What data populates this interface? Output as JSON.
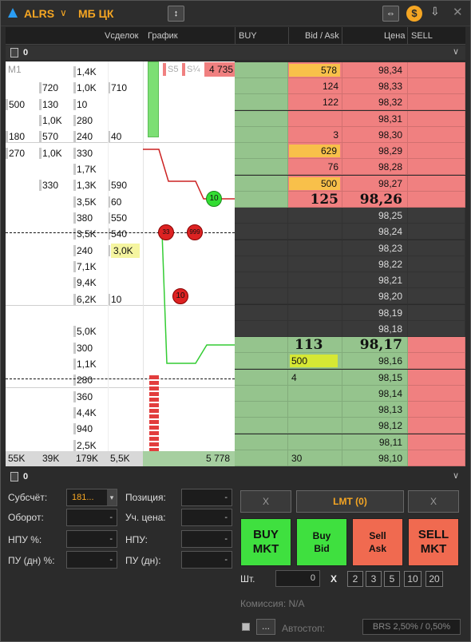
{
  "title": {
    "ticker": "ALRS",
    "board": "МБ ЦК"
  },
  "header": {
    "vsdelok": "Vсделок",
    "grafik": "График",
    "buy": "BUY",
    "bidask": "Bid / Ask",
    "price": "Цена",
    "sell": "SELL"
  },
  "section_top": {
    "count": "0"
  },
  "timeframe": "M1",
  "left_rows": [
    {
      "c1": "",
      "c2": "",
      "c3": "1,4K",
      "c4": ""
    },
    {
      "c1": "",
      "c2": "720",
      "c3": "1,0K",
      "c4": "710"
    },
    {
      "c1": "500",
      "c2": "130",
      "c3": "10",
      "c4": ""
    },
    {
      "c1": "",
      "c2": "1,0K",
      "c3": "280",
      "c4": ""
    },
    {
      "c1": "180",
      "c2": "570",
      "c3": "240",
      "c4": "40"
    },
    {
      "c1": "270",
      "c2": "1,0K",
      "c3": "330",
      "c4": ""
    },
    {
      "c1": "",
      "c2": "",
      "c3": "1,7K",
      "c4": ""
    },
    {
      "c1": "",
      "c2": "330",
      "c3": "1,3K",
      "c4": "590"
    },
    {
      "c1": "",
      "c2": "",
      "c3": "3,5K",
      "c4": "60"
    },
    {
      "c1": "",
      "c2": "",
      "c3": "380",
      "c4": "550"
    },
    {
      "c1": "",
      "c2": "",
      "c3": "3,5K",
      "c4": "540"
    },
    {
      "c1": "",
      "c2": "",
      "c3": "240",
      "c4": "3,0K"
    },
    {
      "c1": "",
      "c2": "",
      "c3": "7,1K",
      "c4": ""
    },
    {
      "c1": "",
      "c2": "",
      "c3": "9,4K",
      "c4": ""
    },
    {
      "c1": "",
      "c2": "",
      "c3": "6,2K",
      "c4": "10"
    },
    {
      "c1": "",
      "c2": "",
      "c3": "",
      "c4": ""
    },
    {
      "c1": "",
      "c2": "",
      "c3": "5,0K",
      "c4": ""
    },
    {
      "c1": "",
      "c2": "",
      "c3": "300",
      "c4": ""
    },
    {
      "c1": "",
      "c2": "",
      "c3": "1,1K",
      "c4": ""
    },
    {
      "c1": "",
      "c2": "",
      "c3": "280",
      "c4": ""
    },
    {
      "c1": "",
      "c2": "",
      "c3": "360",
      "c4": ""
    },
    {
      "c1": "",
      "c2": "",
      "c3": "4,4K",
      "c4": ""
    },
    {
      "c1": "",
      "c2": "",
      "c3": "940",
      "c4": ""
    },
    {
      "c1": "",
      "c2": "",
      "c3": "2,5K",
      "c4": ""
    }
  ],
  "chart_labels": {
    "s5": "S5",
    "s14": "S¼",
    "last": "4 735",
    "marker_green": "10",
    "marker_red_a": "33",
    "marker_red_b": "999",
    "marker_red_c": "10"
  },
  "totals": {
    "c1": "55K",
    "c2": "39K",
    "c3": "179K",
    "c4": "5,5K",
    "chart": "5 778"
  },
  "orderbook": [
    {
      "price": "98,34",
      "ba": "578",
      "side": "ask",
      "hl": true
    },
    {
      "price": "98,33",
      "ba": "124",
      "side": "ask",
      "hl": false
    },
    {
      "price": "98,32",
      "ba": "122",
      "side": "ask",
      "hl": false
    },
    {
      "price": "98,31",
      "ba": "",
      "side": "ask",
      "hl": false
    },
    {
      "price": "98,30",
      "ba": "3",
      "side": "ask",
      "hl": false
    },
    {
      "price": "98,29",
      "ba": "629",
      "side": "ask",
      "hl": true
    },
    {
      "price": "98,28",
      "ba": "76",
      "side": "ask",
      "hl": false
    },
    {
      "price": "98,27",
      "ba": "500",
      "side": "ask",
      "hl": true
    },
    {
      "price": "98,26",
      "ba": "125",
      "side": "best_ask",
      "hl": false
    },
    {
      "price": "98,25",
      "ba": "",
      "side": "spread",
      "hl": false
    },
    {
      "price": "98,24",
      "ba": "",
      "side": "spread",
      "hl": false
    },
    {
      "price": "98,23",
      "ba": "",
      "side": "spread",
      "hl": false
    },
    {
      "price": "98,22",
      "ba": "",
      "side": "spread",
      "hl": false
    },
    {
      "price": "98,21",
      "ba": "",
      "side": "spread",
      "hl": false
    },
    {
      "price": "98,20",
      "ba": "",
      "side": "spread",
      "hl": false
    },
    {
      "price": "98,19",
      "ba": "",
      "side": "spread",
      "hl": false
    },
    {
      "price": "98,18",
      "ba": "",
      "side": "spread",
      "hl": false
    },
    {
      "price": "98,17",
      "ba": "113",
      "side": "best_bid",
      "hl": false
    },
    {
      "price": "98,16",
      "ba": "500",
      "side": "bid",
      "hl": true
    },
    {
      "price": "98,15",
      "ba": "4",
      "side": "bid",
      "hl": false
    },
    {
      "price": "98,14",
      "ba": "",
      "side": "bid",
      "hl": false
    },
    {
      "price": "98,13",
      "ba": "",
      "side": "bid",
      "hl": false
    },
    {
      "price": "98,12",
      "ba": "",
      "side": "bid",
      "hl": false
    },
    {
      "price": "98,11",
      "ba": "",
      "side": "bid",
      "hl": false
    },
    {
      "price": "98,10",
      "ba": "30",
      "side": "bid",
      "hl": false
    }
  ],
  "section_bottom": {
    "count": "0"
  },
  "form": {
    "subaccount_label": "Субсчёт:",
    "subaccount_value": "181...",
    "turnover_label": "Оборот:",
    "turnover_value": "-",
    "npu_pct_label": "НПУ %:",
    "npu_pct_value": "-",
    "pu_day_pct_label": "ПУ (дн) %:",
    "pu_day_pct_value": "-",
    "position_label": "Позиция:",
    "position_value": "-",
    "book_price_label": "Уч. цена:",
    "book_price_value": "-",
    "npu_label": "НПУ:",
    "npu_value": "-",
    "pu_day_label": "ПУ (дн):",
    "pu_day_value": "-"
  },
  "buttons": {
    "cancel_left": "X",
    "lmt": "LMT (0)",
    "cancel_right": "X",
    "buy_mkt": [
      "BUY",
      "MKT"
    ],
    "buy_bid": [
      "Buy",
      "Bid"
    ],
    "sell_ask": [
      "Sell",
      "Ask"
    ],
    "sell_mkt": [
      "SELL",
      "MKT"
    ]
  },
  "qty": {
    "label": "Шт.",
    "value": "0",
    "x": "X",
    "presets": [
      "2",
      "3",
      "5",
      "10",
      "20"
    ]
  },
  "commission": "Комиссия: N/A",
  "autostop": {
    "more": "...",
    "label": "Автостоп:",
    "value": "BRS 2,50% / 0,50%"
  },
  "colors": {
    "ask": "#f08080",
    "bid": "#95c48d",
    "spread": "#3a3a3a",
    "highlight": "#f8c04a",
    "yellow_cell": "#f5f5a0"
  }
}
